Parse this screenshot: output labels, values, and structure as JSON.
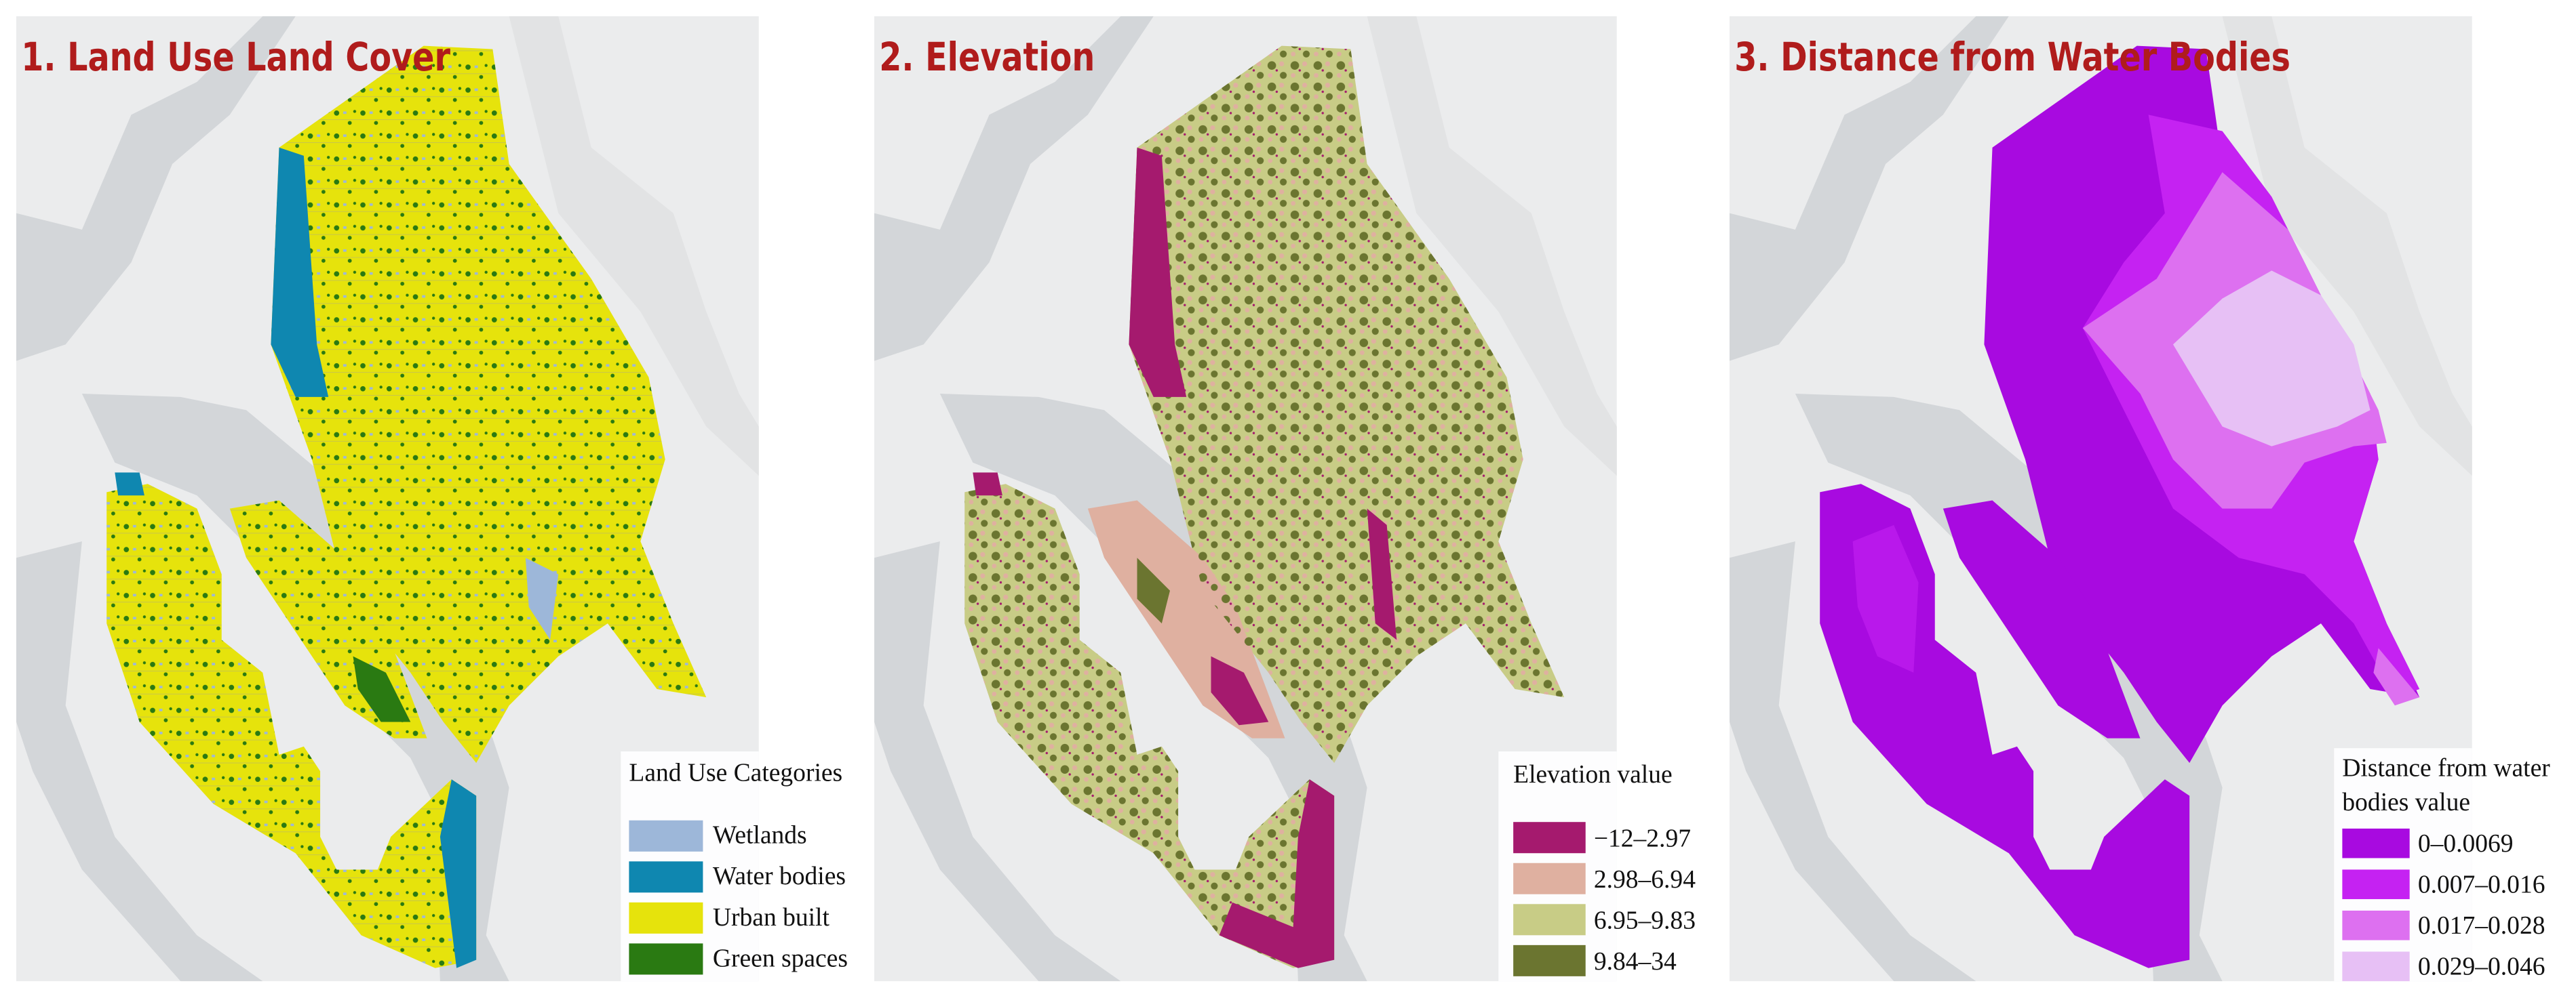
{
  "panels": [
    {
      "title": "1. Land Use Land Cover",
      "legend": {
        "title_lines": [
          "Land Use Categories"
        ],
        "items": [
          {
            "label": "Wetlands",
            "color": "#9db7d9"
          },
          {
            "label": "Water bodies",
            "color": "#0f87b0"
          },
          {
            "label": "Urban built",
            "color": "#e6e30c"
          },
          {
            "label": "Green spaces",
            "color": "#2a7a12"
          }
        ]
      }
    },
    {
      "title": "2. Elevation",
      "legend": {
        "title_lines": [
          "Elevation value"
        ],
        "items": [
          {
            "label": "−12–2.97",
            "color": "#a51a6e"
          },
          {
            "label": "2.98–6.94",
            "color": "#dfb0a0"
          },
          {
            "label": "6.95–9.83",
            "color": "#c8cc86"
          },
          {
            "label": "9.84–34",
            "color": "#6b7530"
          }
        ]
      }
    },
    {
      "title": "3. Distance from Water Bodies",
      "legend": {
        "title_lines": [
          "Distance from water",
          "bodies value"
        ],
        "items": [
          {
            "label": "0–0.0069",
            "color": "#a80ae0"
          },
          {
            "label": "0.007–0.016",
            "color": "#c522f2"
          },
          {
            "label": "0.017–0.028",
            "color": "#dd70f0"
          },
          {
            "label": "0.029–0.046",
            "color": "#e7c0f5"
          }
        ]
      }
    }
  ]
}
